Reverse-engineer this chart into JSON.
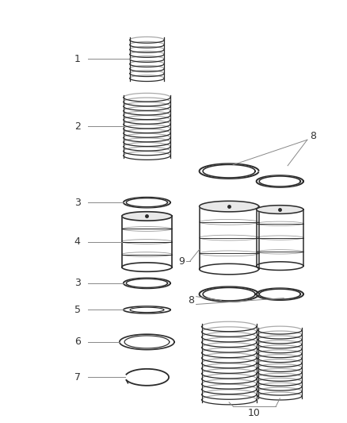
{
  "bg_color": "#ffffff",
  "line_color": "#2a2a2a",
  "label_color": "#444444",
  "fig_width": 4.38,
  "fig_height": 5.33,
  "dpi": 100
}
